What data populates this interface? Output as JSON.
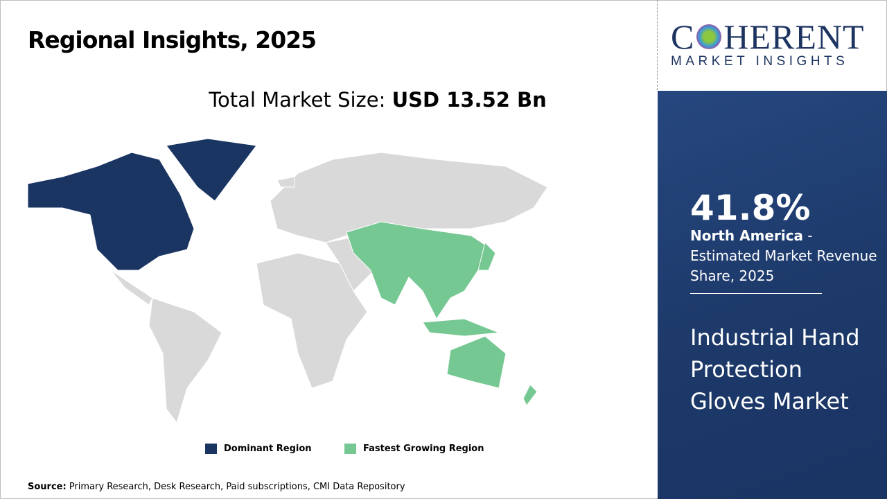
{
  "title": "Regional Insights, 2025",
  "total": {
    "label": "Total Market Size: ",
    "value": "USD 13.52 Bn"
  },
  "legend": [
    {
      "label": "Dominant Region",
      "color": "#1b3563"
    },
    {
      "label": "Fastest Growing Region",
      "color": "#76c893"
    }
  ],
  "source": {
    "label": "Source:",
    "text": " Primary Research, Desk Research, Paid subscriptions, CMI Data Repository"
  },
  "logo": {
    "main_pre": "C",
    "main_post": "HERENT",
    "sub": "MARKET INSIGHTS"
  },
  "panel": {
    "percent": "41.8%",
    "region": "North America",
    "desc": " - Estimated Market Revenue Share, 2025",
    "market": "Industrial Hand Protection Gloves Market"
  },
  "colors": {
    "dominant": "#1b3563",
    "fastest": "#76c893",
    "other": "#d9d9d9",
    "panel": "#1d3a6b"
  }
}
